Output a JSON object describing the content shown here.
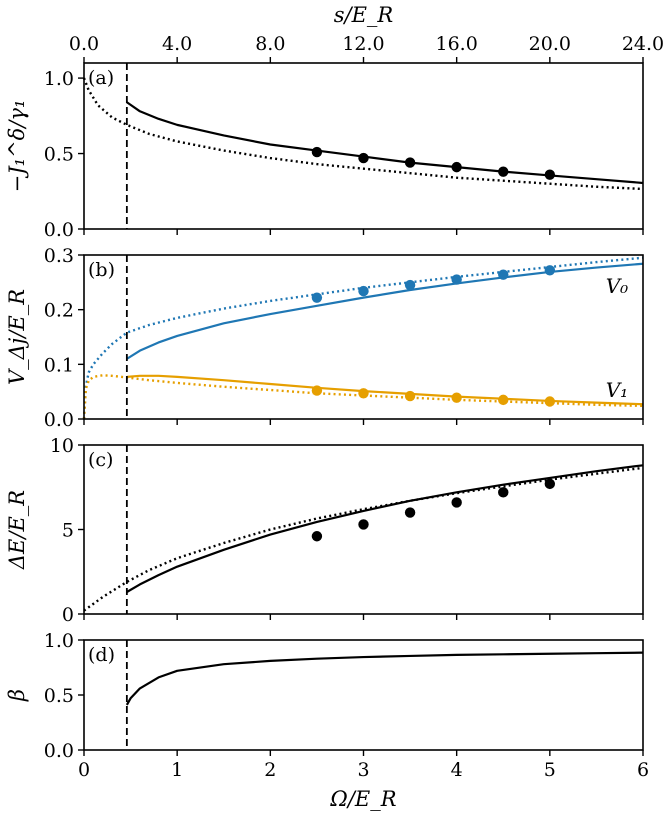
{
  "chart_data": {
    "type": "line",
    "figure": {
      "bottom_axis": {
        "label": "Ω/E_R",
        "range": [
          0,
          6
        ],
        "ticks": [
          0,
          1,
          2,
          3,
          4,
          5,
          6
        ],
        "tick_labels": [
          "0",
          "1",
          "2",
          "3",
          "4",
          "5",
          "6"
        ]
      },
      "top_axis": {
        "label": "s/E_R",
        "range": [
          0,
          24
        ],
        "ticks": [
          0,
          4,
          8,
          12,
          16,
          20,
          24
        ],
        "tick_labels": [
          "0.0",
          "4.0",
          "8.0",
          "12.0",
          "16.0",
          "20.0",
          "24.0"
        ]
      },
      "vertical_dashed_line_x": 0.46
    },
    "panels": [
      {
        "id": "a",
        "label": "(a)",
        "ylabel": "−J₁^δ/γ₁",
        "ylim": [
          0,
          1.1
        ],
        "yticks": [
          0,
          0.5,
          1.0
        ],
        "ytick_labels": [
          "0.0",
          "0.5",
          "1.0"
        ],
        "series": [
          {
            "name": "solid",
            "style": "solid",
            "color": "#000000",
            "x": [
              0.46,
              0.6,
              0.8,
              1.0,
              1.5,
              2.0,
              2.5,
              3.0,
              3.5,
              4.0,
              4.5,
              5.0,
              5.5,
              6.0
            ],
            "y": [
              0.84,
              0.78,
              0.73,
              0.69,
              0.62,
              0.56,
              0.52,
              0.48,
              0.44,
              0.41,
              0.38,
              0.355,
              0.33,
              0.305
            ]
          },
          {
            "name": "dotted",
            "style": "dotted",
            "color": "#000000",
            "x": [
              0.0,
              0.05,
              0.15,
              0.3,
              0.46,
              0.7,
              1.0,
              1.5,
              2.0,
              2.5,
              3.0,
              3.5,
              4.0,
              4.5,
              5.0,
              5.5,
              6.0
            ],
            "y": [
              1.0,
              0.92,
              0.82,
              0.74,
              0.69,
              0.63,
              0.58,
              0.52,
              0.47,
              0.43,
              0.4,
              0.37,
              0.34,
              0.32,
              0.3,
              0.28,
              0.265
            ]
          },
          {
            "name": "points",
            "style": "markers",
            "color": "#000000",
            "x": [
              2.5,
              3.0,
              3.5,
              4.0,
              4.5,
              5.0
            ],
            "y": [
              0.51,
              0.47,
              0.44,
              0.41,
              0.38,
              0.36
            ]
          }
        ]
      },
      {
        "id": "b",
        "label": "(b)",
        "ylabel": "V_Δj/E_R",
        "ylim": [
          0,
          0.3
        ],
        "yticks": [
          0,
          0.1,
          0.2,
          0.3
        ],
        "ytick_labels": [
          "0.0",
          "0.1",
          "0.2",
          "0.3"
        ],
        "series_labels": [
          {
            "text": "V₀",
            "x": 5.6,
            "y": 0.245
          },
          {
            "text": "V₁",
            "x": 5.6,
            "y": 0.055
          }
        ],
        "series": [
          {
            "name": "V0 solid",
            "style": "solid",
            "color": "#1f77b4",
            "x": [
              0.46,
              0.6,
              0.8,
              1.0,
              1.5,
              2.0,
              2.5,
              3.0,
              3.5,
              4.0,
              4.5,
              5.0,
              5.5,
              6.0
            ],
            "y": [
              0.11,
              0.125,
              0.14,
              0.152,
              0.175,
              0.192,
              0.207,
              0.222,
              0.236,
              0.248,
              0.259,
              0.269,
              0.277,
              0.284
            ]
          },
          {
            "name": "V0 dotted",
            "style": "dotted",
            "color": "#1f77b4",
            "x": [
              0.0,
              0.02,
              0.05,
              0.1,
              0.2,
              0.3,
              0.46,
              0.7,
              1.0,
              1.5,
              2.0,
              2.5,
              3.0,
              3.5,
              4.0,
              4.5,
              5.0,
              5.5,
              6.0
            ],
            "y": [
              0.0,
              0.06,
              0.085,
              0.1,
              0.12,
              0.137,
              0.158,
              0.172,
              0.185,
              0.202,
              0.216,
              0.228,
              0.24,
              0.25,
              0.26,
              0.269,
              0.278,
              0.287,
              0.295
            ]
          },
          {
            "name": "V0 points",
            "style": "markers",
            "color": "#1f77b4",
            "x": [
              2.5,
              3.0,
              3.5,
              4.0,
              4.5,
              5.0
            ],
            "y": [
              0.222,
              0.234,
              0.245,
              0.255,
              0.264,
              0.272
            ]
          },
          {
            "name": "V1 solid",
            "style": "solid",
            "color": "#e69f00",
            "x": [
              0.46,
              0.6,
              0.8,
              1.0,
              1.5,
              2.0,
              2.5,
              3.0,
              3.5,
              4.0,
              4.5,
              5.0,
              5.5,
              6.0
            ],
            "y": [
              0.077,
              0.079,
              0.079,
              0.077,
              0.071,
              0.064,
              0.057,
              0.051,
              0.046,
              0.041,
              0.037,
              0.033,
              0.03,
              0.027
            ]
          },
          {
            "name": "V1 dotted",
            "style": "dotted",
            "color": "#e69f00",
            "x": [
              0.0,
              0.02,
              0.05,
              0.1,
              0.2,
              0.3,
              0.46,
              0.7,
              1.0,
              1.5,
              2.0,
              2.5,
              3.0,
              3.5,
              4.0,
              4.5,
              5.0,
              5.5,
              6.0
            ],
            "y": [
              0.0,
              0.055,
              0.07,
              0.077,
              0.08,
              0.079,
              0.076,
              0.071,
              0.066,
              0.059,
              0.053,
              0.047,
              0.043,
              0.039,
              0.035,
              0.032,
              0.029,
              0.026,
              0.024
            ]
          },
          {
            "name": "V1 points",
            "style": "markers",
            "color": "#e69f00",
            "x": [
              2.5,
              3.0,
              3.5,
              4.0,
              4.5,
              5.0
            ],
            "y": [
              0.052,
              0.047,
              0.042,
              0.039,
              0.035,
              0.032
            ]
          }
        ]
      },
      {
        "id": "c",
        "label": "(c)",
        "ylabel": "ΔE/E_R",
        "ylim": [
          0,
          10
        ],
        "yticks": [
          0,
          5,
          10
        ],
        "ytick_labels": [
          "0",
          "5",
          "10"
        ],
        "series": [
          {
            "name": "solid",
            "style": "solid",
            "color": "#000000",
            "x": [
              0.46,
              0.6,
              0.8,
              1.0,
              1.5,
              2.0,
              2.5,
              3.0,
              3.5,
              4.0,
              4.5,
              5.0,
              5.5,
              6.0
            ],
            "y": [
              1.3,
              1.75,
              2.3,
              2.8,
              3.8,
              4.7,
              5.45,
              6.1,
              6.7,
              7.2,
              7.65,
              8.05,
              8.45,
              8.8
            ]
          },
          {
            "name": "dotted",
            "style": "dotted",
            "color": "#000000",
            "x": [
              0.0,
              0.1,
              0.2,
              0.46,
              0.7,
              1.0,
              1.5,
              2.0,
              2.5,
              3.0,
              3.5,
              4.0,
              4.5,
              5.0,
              5.5,
              6.0
            ],
            "y": [
              0.2,
              0.6,
              1.0,
              1.9,
              2.6,
              3.3,
              4.2,
              5.0,
              5.65,
              6.2,
              6.7,
              7.15,
              7.55,
              7.95,
              8.3,
              8.65
            ]
          },
          {
            "name": "points",
            "style": "markers",
            "color": "#000000",
            "x": [
              2.5,
              3.0,
              3.5,
              4.0,
              4.5,
              5.0
            ],
            "y": [
              4.6,
              5.3,
              6.0,
              6.6,
              7.2,
              7.7
            ]
          }
        ]
      },
      {
        "id": "d",
        "label": "(d)",
        "ylabel": "β",
        "ylim": [
          0,
          1.0
        ],
        "yticks": [
          0,
          0.5,
          1.0
        ],
        "ytick_labels": [
          "0.0",
          "0.5",
          "1.0"
        ],
        "series": [
          {
            "name": "solid",
            "style": "solid",
            "color": "#000000",
            "x": [
              0.46,
              0.5,
              0.6,
              0.8,
              1.0,
              1.5,
              2.0,
              2.5,
              3.0,
              3.5,
              4.0,
              4.5,
              5.0,
              5.5,
              6.0
            ],
            "y": [
              0.41,
              0.47,
              0.56,
              0.66,
              0.72,
              0.78,
              0.81,
              0.83,
              0.845,
              0.855,
              0.865,
              0.87,
              0.875,
              0.88,
              0.885
            ]
          }
        ]
      }
    ]
  }
}
